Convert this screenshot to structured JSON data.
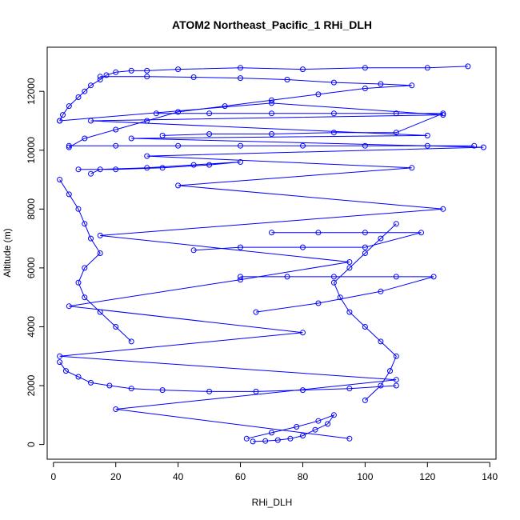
{
  "chart_data": {
    "type": "scatter",
    "title": "ATOM2 Northeast_Pacific_1 RHi_DLH",
    "xlabel": "RHi_DLH",
    "ylabel": "Altitude (m)",
    "xlim": [
      -2,
      142
    ],
    "ylim": [
      -500,
      13500
    ],
    "xticks": [
      0,
      20,
      40,
      60,
      80,
      100,
      120,
      140
    ],
    "yticks": [
      0,
      2000,
      4000,
      6000,
      8000,
      10000,
      12000
    ],
    "grid": false,
    "legend": "none",
    "marker": "open-circle",
    "connect_points": true,
    "series_color": "#0000ff",
    "profile_segments": [
      {
        "x": [
          95,
          20,
          110,
          2,
          80,
          5,
          60,
          95,
          15,
          125,
          40,
          115,
          30,
          138,
          25,
          120,
          12,
          125,
          70,
          2
        ],
        "y": [
          200,
          1200,
          2200,
          3000,
          3800,
          4700,
          5600,
          6200,
          7100,
          8000,
          8800,
          9400,
          9800,
          10100,
          10400,
          10500,
          11000,
          11200,
          11600,
          11000
        ]
      },
      {
        "x": [
          2,
          3,
          5,
          8,
          10,
          12,
          15,
          17,
          20,
          25,
          30,
          40,
          60,
          80,
          100,
          120,
          133
        ],
        "y": [
          11000,
          11200,
          11500,
          11800,
          12000,
          12200,
          12400,
          12550,
          12650,
          12700,
          12700,
          12750,
          12800,
          12750,
          12800,
          12800,
          12850
        ]
      },
      {
        "x": [
          15,
          30,
          45,
          60,
          75,
          90,
          105,
          115,
          100,
          85,
          70,
          55,
          40,
          30,
          20,
          10,
          5
        ],
        "y": [
          12500,
          12500,
          12480,
          12450,
          12400,
          12300,
          12250,
          12200,
          12100,
          11900,
          11700,
          11500,
          11300,
          11000,
          10700,
          10400,
          10100
        ]
      },
      {
        "x": [
          33,
          50,
          70,
          90,
          110,
          125,
          110,
          90,
          70,
          50,
          35
        ],
        "y": [
          11250,
          11250,
          11250,
          11250,
          11250,
          11250,
          10600,
          10600,
          10550,
          10550,
          10500
        ]
      },
      {
        "x": [
          5,
          20,
          40,
          60,
          80,
          100,
          120,
          135
        ],
        "y": [
          10150,
          10150,
          10150,
          10150,
          10150,
          10150,
          10150,
          10150
        ]
      },
      {
        "x": [
          8,
          20,
          35,
          50,
          60,
          45,
          30,
          15,
          12
        ],
        "y": [
          9350,
          9350,
          9400,
          9500,
          9600,
          9500,
          9400,
          9350,
          9200
        ]
      },
      {
        "x": [
          2,
          5,
          8,
          10,
          12,
          15,
          10,
          8,
          10,
          15,
          20,
          25
        ],
        "y": [
          9000,
          8500,
          8000,
          7500,
          7000,
          6500,
          6000,
          5500,
          5000,
          4500,
          4000,
          3500
        ]
      },
      {
        "x": [
          2,
          4,
          8,
          12,
          18,
          25,
          35,
          50,
          65,
          80,
          95,
          110
        ],
        "y": [
          2800,
          2500,
          2300,
          2100,
          2000,
          1900,
          1850,
          1800,
          1800,
          1850,
          1900,
          2000
        ]
      },
      {
        "x": [
          62,
          70,
          78,
          85,
          90,
          88,
          84,
          80,
          76,
          72,
          68,
          64
        ],
        "y": [
          200,
          400,
          600,
          800,
          1000,
          700,
          500,
          300,
          200,
          150,
          120,
          100
        ]
      },
      {
        "x": [
          100,
          105,
          108,
          110,
          105,
          100,
          95,
          92,
          90,
          95,
          100,
          105,
          110
        ],
        "y": [
          1500,
          2000,
          2500,
          3000,
          3500,
          4000,
          4500,
          5000,
          5500,
          6000,
          6500,
          7000,
          7500
        ]
      },
      {
        "x": [
          60,
          75,
          90,
          110,
          122,
          105,
          85,
          65
        ],
        "y": [
          5700,
          5700,
          5700,
          5700,
          5700,
          5200,
          4800,
          4500
        ]
      },
      {
        "x": [
          70,
          85,
          100,
          118,
          100,
          80,
          60,
          45
        ],
        "y": [
          7200,
          7200,
          7200,
          7200,
          6700,
          6700,
          6700,
          6600
        ]
      }
    ]
  }
}
